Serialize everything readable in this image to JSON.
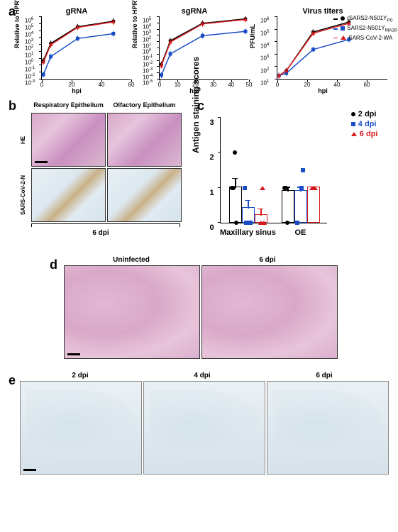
{
  "panel_a": {
    "charts": [
      {
        "title": "gRNA",
        "ylabel": "Relative to HPRT",
        "xlabel": "hpi",
        "ylim": [
          -3,
          6
        ],
        "ytick_exp": [
          -3,
          -2,
          -1,
          0,
          1,
          2,
          3,
          4,
          5,
          6
        ],
        "xlim": [
          0,
          60
        ],
        "xticks": [
          0,
          20,
          40,
          60
        ],
        "series": [
          {
            "color": "#000000",
            "marker": "circle",
            "x": [
              1,
              6,
              24,
              48
            ],
            "y": [
              -0.3,
              2.2,
              4.6,
              5.4
            ]
          },
          {
            "color": "#1b4ec6",
            "marker": "square",
            "x": [
              1,
              6,
              24,
              48
            ],
            "y": [
              -2.3,
              0.3,
              2.9,
              3.6
            ]
          },
          {
            "color": "#d7191c",
            "marker": "triangle",
            "x": [
              1,
              6,
              24,
              48
            ],
            "y": [
              -0.5,
              2.0,
              4.5,
              5.3
            ]
          }
        ]
      },
      {
        "title": "sgRNA",
        "ylabel": "Relative to HPRT",
        "xlabel": "hpi",
        "ylim": [
          -5,
          5
        ],
        "ytick_exp": [
          -5,
          -4,
          -3,
          -2,
          -1,
          0,
          1,
          2,
          3,
          4,
          5
        ],
        "xlim": [
          0,
          50
        ],
        "xticks": [
          0,
          10,
          20,
          30,
          40,
          50
        ],
        "series": [
          {
            "color": "#000000",
            "marker": "circle",
            "x": [
              1,
              6,
              24,
              48
            ],
            "y": [
              -2.6,
              1.2,
              4.0,
              4.7
            ]
          },
          {
            "color": "#1b4ec6",
            "marker": "square",
            "x": [
              1,
              6,
              24,
              48
            ],
            "y": [
              -4.3,
              -0.9,
              2.0,
              2.7
            ]
          },
          {
            "color": "#d7191c",
            "marker": "triangle",
            "x": [
              1,
              6,
              24,
              48
            ],
            "y": [
              -2.8,
              1.0,
              3.9,
              4.6
            ]
          }
        ]
      },
      {
        "title": "Virus titers",
        "ylabel": "PFU/mL",
        "xlabel": "hpi",
        "ylim": [
          1,
          6
        ],
        "ytick_exp": [
          1,
          2,
          3,
          4,
          5,
          6
        ],
        "xlim": [
          0,
          60
        ],
        "xticks": [
          0,
          20,
          40,
          60
        ],
        "series": [
          {
            "color": "#000000",
            "marker": "circle",
            "x": [
              1,
              6,
              24,
              48
            ],
            "y": [
              1.3,
              1.7,
              4.8,
              5.6
            ]
          },
          {
            "color": "#1b4ec6",
            "marker": "square",
            "x": [
              1,
              6,
              24,
              48
            ],
            "y": [
              1.3,
              1.5,
              3.4,
              4.2
            ]
          },
          {
            "color": "#d7191c",
            "marker": "triangle",
            "x": [
              1,
              6,
              24,
              48
            ],
            "y": [
              1.3,
              1.7,
              4.7,
              5.5
            ]
          }
        ],
        "legend": [
          {
            "label": "rSARS2-N501Y",
            "sub": "P0",
            "color": "#000000",
            "marker": "circle"
          },
          {
            "label": "SARS2-N501Y",
            "sub": "MA30",
            "color": "#1b4ec6",
            "marker": "square"
          },
          {
            "label": "SARS-CoV-2-WA",
            "sub": "",
            "color": "#d7191c",
            "marker": "triangle"
          }
        ]
      }
    ]
  },
  "panel_b": {
    "col_headers": [
      "Respiratory Epithelium",
      "Olfactory Epithelium"
    ],
    "row_headers": [
      "HE",
      "SARS-CoV-2-N"
    ],
    "dpi_label": "6 dpi"
  },
  "panel_c": {
    "ylabel": "Antigen staining scores",
    "ylim": [
      0,
      3
    ],
    "yticks": [
      0,
      1,
      2,
      3
    ],
    "groups": [
      "Maxillary sinus",
      "OE"
    ],
    "legend": [
      {
        "label": "2 dpi",
        "color": "#000000",
        "marker": "circle"
      },
      {
        "label": "4 dpi",
        "color": "#1b4ec6",
        "marker": "square"
      },
      {
        "label": "6 dpi",
        "color": "#d7191c",
        "marker": "triangle"
      }
    ],
    "bars": [
      {
        "group": 0,
        "sub": 0,
        "mean": 1.0,
        "err": 0.25,
        "border": "#000000"
      },
      {
        "group": 0,
        "sub": 1,
        "mean": 0.4,
        "err": 0.22,
        "border": "#1b4ec6"
      },
      {
        "group": 0,
        "sub": 2,
        "mean": 0.2,
        "err": 0.18,
        "border": "#d7191c"
      },
      {
        "group": 1,
        "sub": 0,
        "mean": 0.9,
        "err": 0.1,
        "border": "#000000"
      },
      {
        "group": 1,
        "sub": 1,
        "mean": 0.9,
        "err": 0.1,
        "border": "#1b4ec6"
      },
      {
        "group": 1,
        "sub": 2,
        "mean": 1.0,
        "err": 0.0,
        "border": "#d7191c"
      }
    ],
    "points": [
      {
        "group": 0,
        "sub": 0,
        "y": 1,
        "marker": "circle",
        "color": "#000000"
      },
      {
        "group": 0,
        "sub": 0,
        "y": 1,
        "marker": "circle",
        "color": "#000000"
      },
      {
        "group": 0,
        "sub": 0,
        "y": 2,
        "marker": "circle",
        "color": "#000000"
      },
      {
        "group": 0,
        "sub": 0,
        "y": 0,
        "marker": "circle",
        "color": "#000000"
      },
      {
        "group": 0,
        "sub": 1,
        "y": 0,
        "marker": "square",
        "color": "#1b4ec6"
      },
      {
        "group": 0,
        "sub": 1,
        "y": 1,
        "marker": "square",
        "color": "#1b4ec6"
      },
      {
        "group": 0,
        "sub": 1,
        "y": 0,
        "marker": "square",
        "color": "#1b4ec6"
      },
      {
        "group": 0,
        "sub": 2,
        "y": 0,
        "marker": "triangle",
        "color": "#d7191c"
      },
      {
        "group": 0,
        "sub": 2,
        "y": 1,
        "marker": "triangle",
        "color": "#d7191c"
      },
      {
        "group": 0,
        "sub": 2,
        "y": 0,
        "marker": "triangle",
        "color": "#d7191c"
      },
      {
        "group": 1,
        "sub": 0,
        "y": 1,
        "marker": "circle",
        "color": "#000000"
      },
      {
        "group": 1,
        "sub": 0,
        "y": 1,
        "marker": "circle",
        "color": "#000000"
      },
      {
        "group": 1,
        "sub": 0,
        "y": 0,
        "marker": "circle",
        "color": "#000000"
      },
      {
        "group": 1,
        "sub": 1,
        "y": 1,
        "marker": "square",
        "color": "#1b4ec6"
      },
      {
        "group": 1,
        "sub": 1,
        "y": 1.5,
        "marker": "square",
        "color": "#1b4ec6"
      },
      {
        "group": 1,
        "sub": 1,
        "y": 0,
        "marker": "square",
        "color": "#1b4ec6"
      },
      {
        "group": 1,
        "sub": 2,
        "y": 1,
        "marker": "triangle",
        "color": "#d7191c"
      },
      {
        "group": 1,
        "sub": 2,
        "y": 1,
        "marker": "triangle",
        "color": "#d7191c"
      },
      {
        "group": 1,
        "sub": 2,
        "y": 1,
        "marker": "triangle",
        "color": "#d7191c"
      }
    ]
  },
  "panel_d": {
    "headers": [
      "Uninfected",
      "6 dpi"
    ]
  },
  "panel_e": {
    "headers": [
      "2 dpi",
      "4 dpi",
      "6 dpi"
    ]
  },
  "colors": {
    "black": "#000000",
    "blue": "#1b4ec6",
    "red": "#d7191c"
  }
}
